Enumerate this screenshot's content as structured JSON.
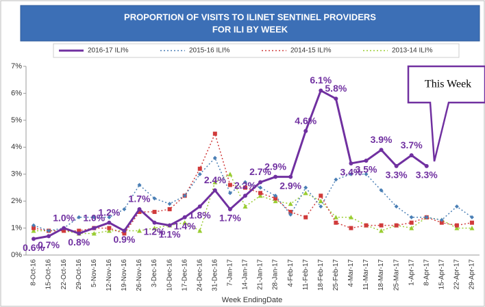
{
  "chart_data": {
    "type": "line",
    "title": [
      "PROPORTION OF VISITS TO ILINET SENTINEL PROVIDERS",
      "FOR ILI BY WEEK"
    ],
    "x_label": "Week EndingDate",
    "annotation": "This Week",
    "categories": [
      "8-Oct-16",
      "15-Oct-16",
      "22-Oct-16",
      "29-Oct-16",
      "5-Nov-16",
      "12-Nov-16",
      "19-Nov-16",
      "26-Nov-16",
      "3-Dec-16",
      "10-Dec-16",
      "17-Dec-16",
      "24-Dec-16",
      "31-Dec-16",
      "7-Jan-17",
      "14-Jan-17",
      "21-Jan-17",
      "28-Jan-17",
      "4-Feb-17",
      "11-Feb-17",
      "18-Feb-17",
      "25-Feb-17",
      "4-Mar-17",
      "11-Mar-17",
      "18-Mar-17",
      "25-Mar-17",
      "1-Apr-17",
      "8-Apr-17",
      "15-Apr-17",
      "22-Apr-17",
      "29-Apr-17"
    ],
    "ylim": [
      0,
      7
    ],
    "yticks": [
      {
        "value": 0,
        "label": "0%"
      },
      {
        "value": 1,
        "label": "1%"
      },
      {
        "value": 2,
        "label": "2%"
      },
      {
        "value": 3,
        "label": "3%"
      },
      {
        "value": 4,
        "label": "4%"
      },
      {
        "value": 5,
        "label": "5%"
      },
      {
        "value": 6,
        "label": "6%"
      },
      {
        "value": 7,
        "label": "7%"
      }
    ],
    "series": [
      {
        "name": "2016-17 ILI%",
        "color": "#7030a0",
        "values": [
          0.6,
          0.7,
          1.0,
          0.8,
          1.0,
          1.2,
          0.9,
          1.7,
          1.2,
          1.1,
          1.4,
          1.8,
          2.4,
          1.7,
          2.2,
          2.7,
          2.9,
          2.9,
          4.6,
          6.1,
          5.8,
          3.4,
          3.5,
          3.9,
          3.3,
          3.7,
          3.3,
          null,
          null,
          null
        ],
        "value_labels": [
          "0.6%",
          "0.7%",
          "1.0%",
          "0.8%",
          "1.0%",
          "1.2%",
          "0.9%",
          "1.7%",
          "1.2%",
          "1.1%",
          "1.4%",
          "1.8%",
          "2.4%",
          "1.7%",
          "2.2%",
          "2.7%",
          "2.9%",
          "2.9%",
          "4.6%",
          "6.1%",
          "5.8%",
          "3.4%",
          "3.5%",
          "3.9%",
          "3.3%",
          "3.7%",
          "3.3%",
          null,
          null,
          null
        ]
      },
      {
        "name": "2015-16 ILI%",
        "color": "#4a7fb5",
        "values": [
          1.1,
          0.9,
          1.0,
          1.4,
          1.4,
          1.4,
          1.7,
          2.6,
          2.1,
          1.9,
          2.2,
          3.0,
          3.6,
          2.3,
          2.7,
          2.5,
          2.2,
          1.5,
          2.5,
          1.8,
          2.8,
          3.0,
          3.0,
          2.4,
          1.8,
          1.4,
          1.4,
          1.3,
          1.8,
          1.4
        ]
      },
      {
        "name": "2014-15 ILI%",
        "color": "#d03b3b",
        "values": [
          1.0,
          0.9,
          0.9,
          0.9,
          1.0,
          1.0,
          0.8,
          1.6,
          1.6,
          1.7,
          2.2,
          3.2,
          4.5,
          2.6,
          2.5,
          2.3,
          2.1,
          1.6,
          1.4,
          2.2,
          1.2,
          1.0,
          1.1,
          1.1,
          1.1,
          1.2,
          1.4,
          1.2,
          1.1,
          1.2
        ]
      },
      {
        "name": "2013-14 ILI%",
        "color": "#9acd32",
        "values": [
          0.9,
          0.9,
          0.9,
          0.8,
          0.8,
          0.9,
          0.9,
          0.9,
          1.0,
          1.1,
          1.2,
          0.9,
          2.7,
          3.0,
          1.8,
          2.2,
          2.0,
          1.9,
          2.3,
          2.0,
          1.4,
          1.4,
          1.1,
          0.9,
          1.1,
          1.0,
          1.4,
          1.3,
          1.0,
          1.0
        ]
      }
    ]
  }
}
